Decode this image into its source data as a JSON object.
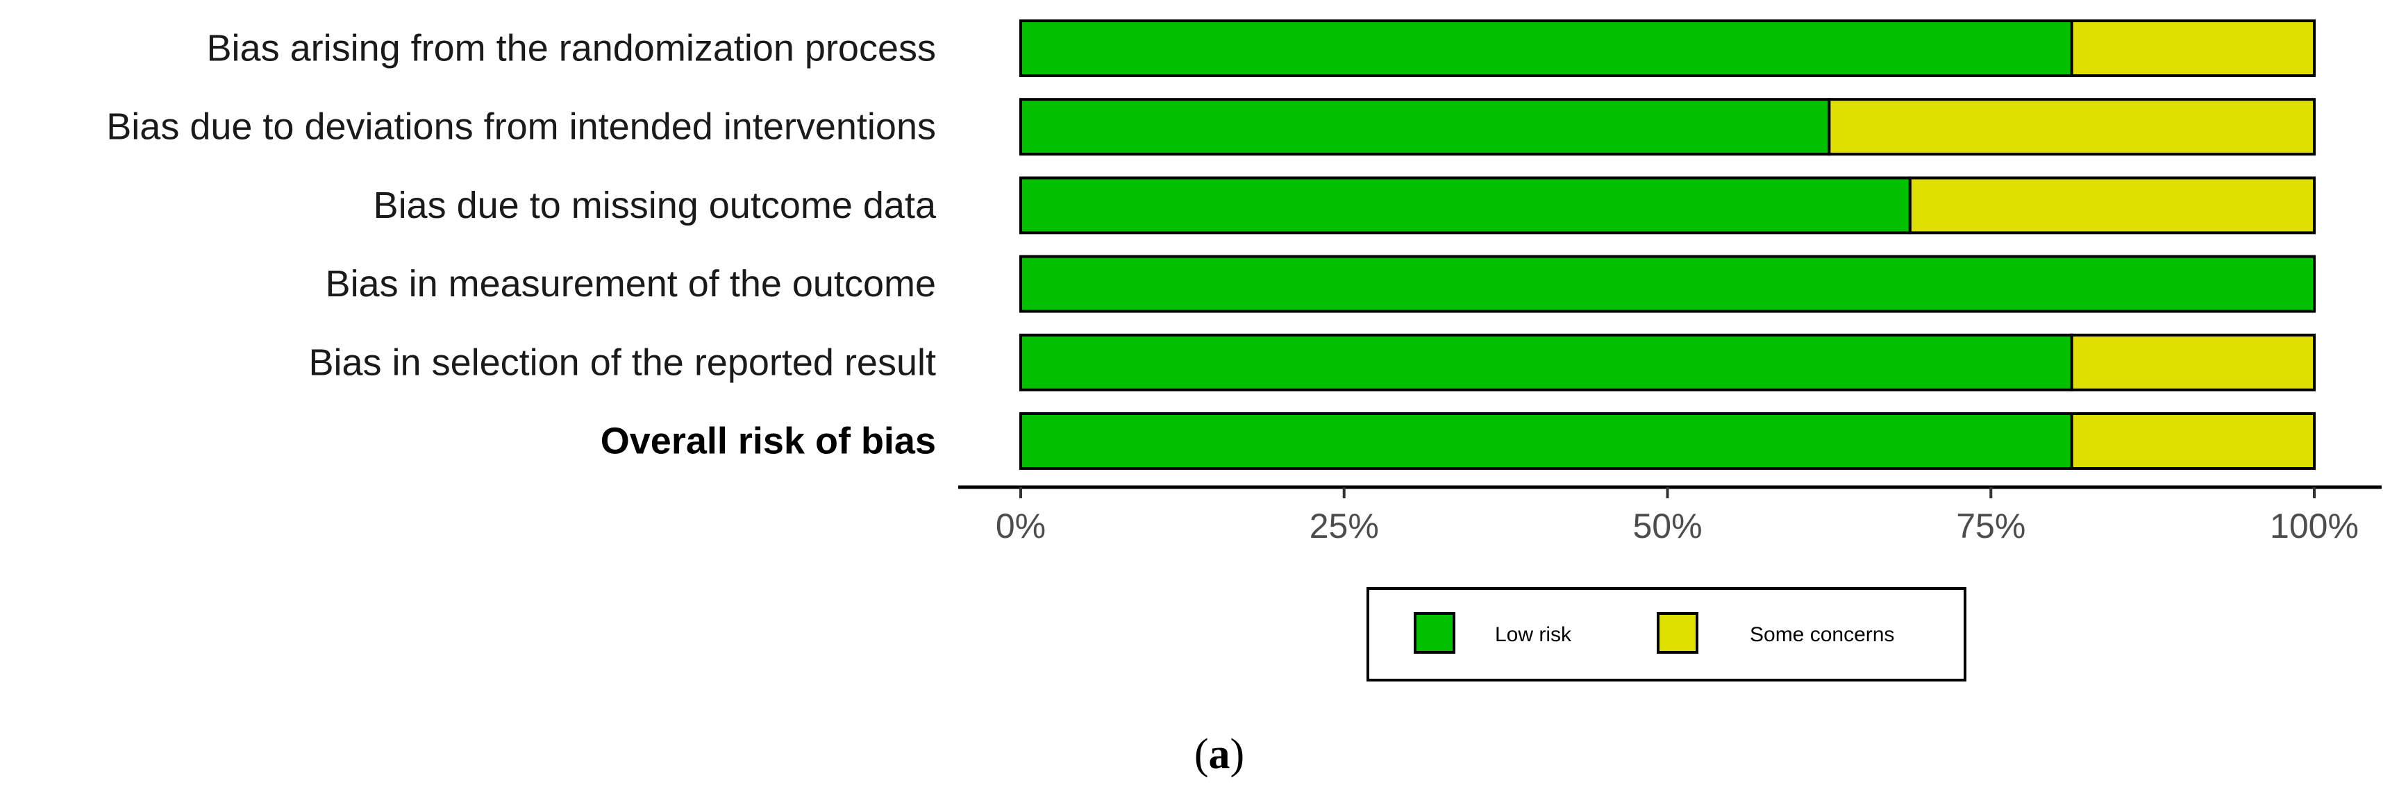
{
  "chart_data": {
    "type": "bar",
    "stacked": true,
    "orientation": "horizontal",
    "categories": [
      "Bias arising from the randomization process",
      "Bias due to deviations from intended interventions",
      "Bias due to missing outcome data",
      "Bias in measurement of the outcome",
      "Bias in selection of the reported result",
      "Overall risk of bias"
    ],
    "bold_categories": [
      "Overall risk of bias"
    ],
    "series": [
      {
        "name": "Low risk",
        "color": "#00c000",
        "values": [
          81.25,
          62.5,
          68.75,
          100,
          81.25,
          81.25
        ]
      },
      {
        "name": "Some concerns",
        "color": "#e0e000",
        "values": [
          18.75,
          37.5,
          31.25,
          0,
          18.75,
          18.75
        ]
      }
    ],
    "x_ticks": [
      "0%",
      "25%",
      "50%",
      "75%",
      "100%"
    ],
    "xlim": [
      0,
      100
    ],
    "legend_position": "bottom",
    "grid": false
  },
  "caption": {
    "open": "(",
    "letter": "a",
    "close": ")"
  }
}
